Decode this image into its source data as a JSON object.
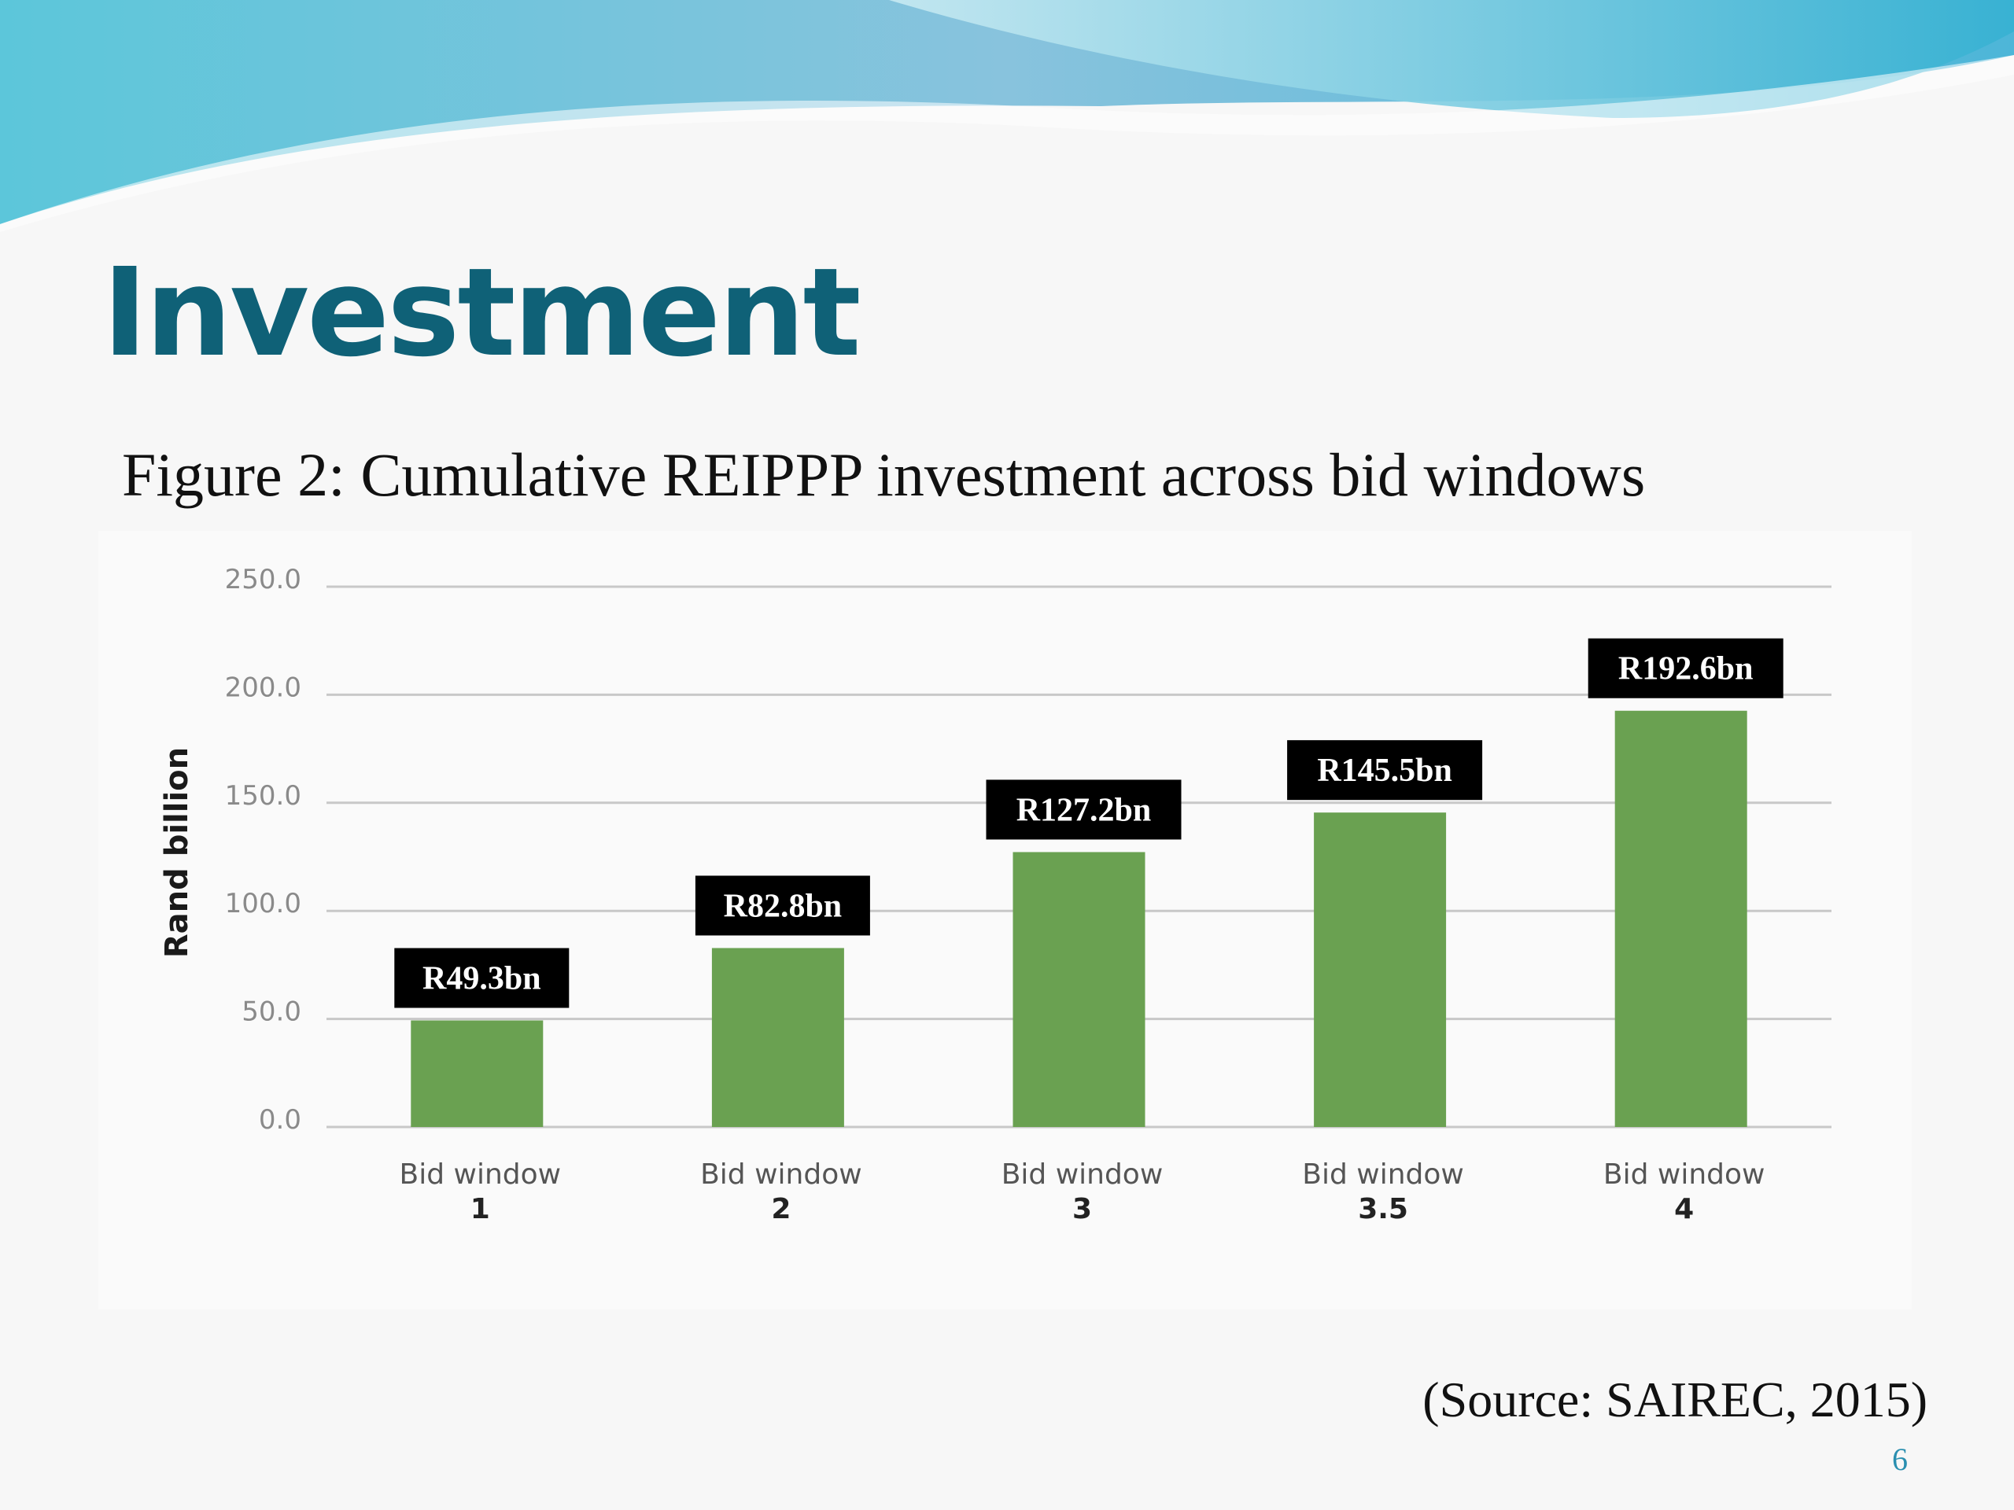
{
  "slide": {
    "title": "Investment",
    "figure_caption": "Figure 2: Cumulative REIPPP investment across bid windows",
    "source": "(Source: SAIREC, 2015)",
    "page_number": "6"
  },
  "colors": {
    "title": "#0f6177",
    "bar": "#6aa151",
    "label_box": "#000000",
    "label_text": "#ffffff",
    "grid": "#c8c8c8",
    "tick_text": "#8a8a8a"
  },
  "chart_data": {
    "type": "bar",
    "title": "",
    "ylabel": "Rand billion",
    "xlabel": "",
    "ylim": [
      0,
      250
    ],
    "yticks": [
      "0.0",
      "50.0",
      "100.0",
      "150.0",
      "200.0",
      "250.0"
    ],
    "grid": true,
    "legend": "none",
    "categories": [
      {
        "line1": "Bid window",
        "line2": "1"
      },
      {
        "line1": "Bid window",
        "line2": "2"
      },
      {
        "line1": "Bid window",
        "line2": "3"
      },
      {
        "line1": "Bid window",
        "line2": "3.5"
      },
      {
        "line1": "Bid window",
        "line2": "4"
      }
    ],
    "values": [
      49.3,
      82.8,
      127.2,
      145.5,
      192.6
    ],
    "data_labels": [
      "R49.3bn",
      "R82.8bn",
      "R127.2bn",
      "R145.5bn",
      "R192.6bn"
    ]
  }
}
